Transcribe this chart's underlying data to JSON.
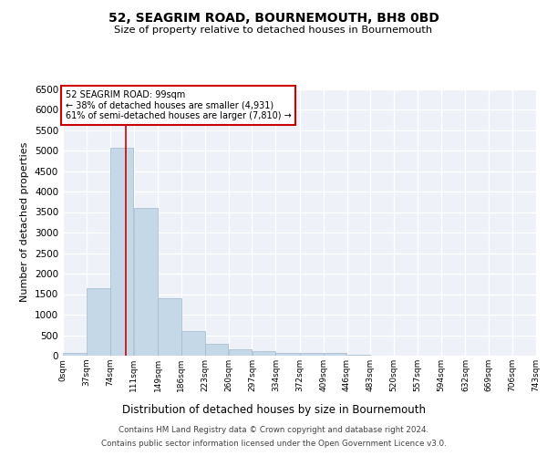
{
  "title": "52, SEAGRIM ROAD, BOURNEMOUTH, BH8 0BD",
  "subtitle": "Size of property relative to detached houses in Bournemouth",
  "xlabel": "Distribution of detached houses by size in Bournemouth",
  "ylabel": "Number of detached properties",
  "bar_color": "#c5d8e8",
  "bar_edge_color": "#a0b8cc",
  "background_color": "#eef2f8",
  "grid_color": "#ffffff",
  "annotation_box_color": "#cc0000",
  "annotation_line_color": "#cc0000",
  "property_line_x": 99,
  "annotation_text": "52 SEAGRIM ROAD: 99sqm\n← 38% of detached houses are smaller (4,931)\n61% of semi-detached houses are larger (7,810) →",
  "footer_line1": "Contains HM Land Registry data © Crown copyright and database right 2024.",
  "footer_line2": "Contains public sector information licensed under the Open Government Licence v3.0.",
  "bin_edges": [
    0,
    37,
    74,
    111,
    149,
    186,
    223,
    260,
    297,
    334,
    372,
    409,
    446,
    483,
    520,
    557,
    594,
    632,
    669,
    706,
    743
  ],
  "bar_heights": [
    70,
    1640,
    5060,
    3590,
    1410,
    610,
    290,
    150,
    110,
    70,
    70,
    60,
    30,
    0,
    0,
    0,
    0,
    0,
    0,
    0
  ],
  "ylim": [
    0,
    6500
  ],
  "xlim": [
    0,
    743
  ]
}
